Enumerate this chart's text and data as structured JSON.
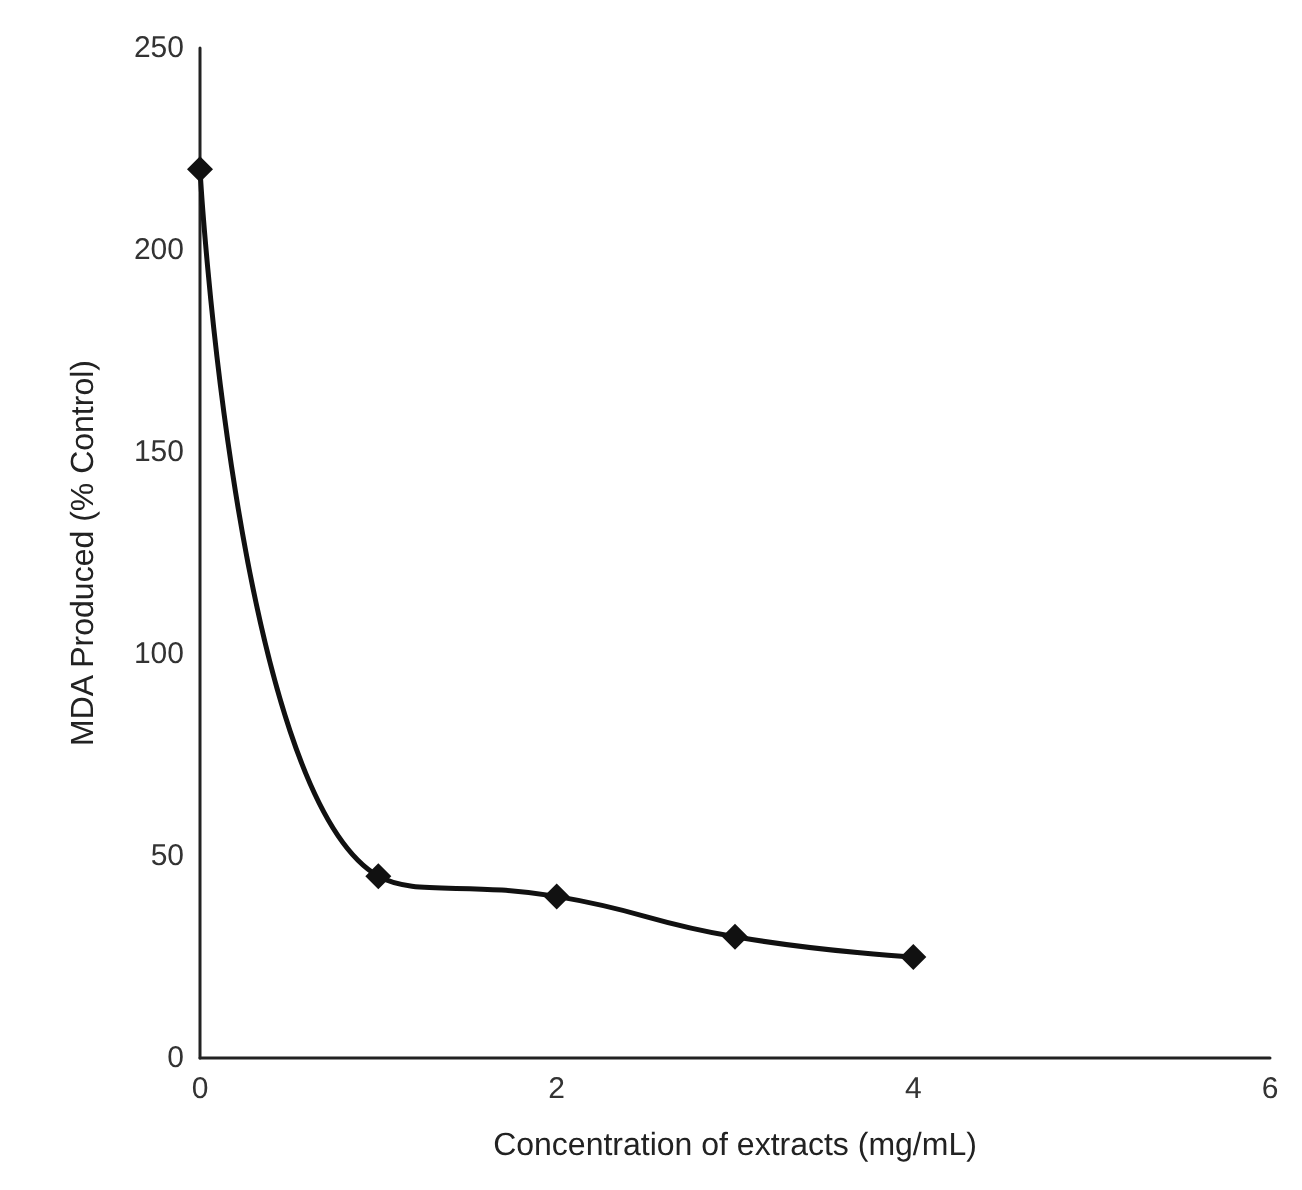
{
  "chart_data": {
    "type": "line",
    "xlabel": "Concentration of extracts (mg/mL)",
    "ylabel": "MDA Produced (% Control)",
    "x": [
      0,
      1,
      2,
      3,
      4
    ],
    "series": [
      {
        "color": "#111111",
        "values": [
          220,
          45,
          40,
          30,
          25
        ]
      }
    ],
    "xlim": [
      0,
      6
    ],
    "xticks": [
      0,
      2,
      4,
      6
    ],
    "ylim": [
      0,
      250
    ],
    "yticks": [
      0,
      50,
      100,
      150,
      200,
      250
    ],
    "grid": false,
    "marker": "diamond",
    "line_style": "solid"
  }
}
